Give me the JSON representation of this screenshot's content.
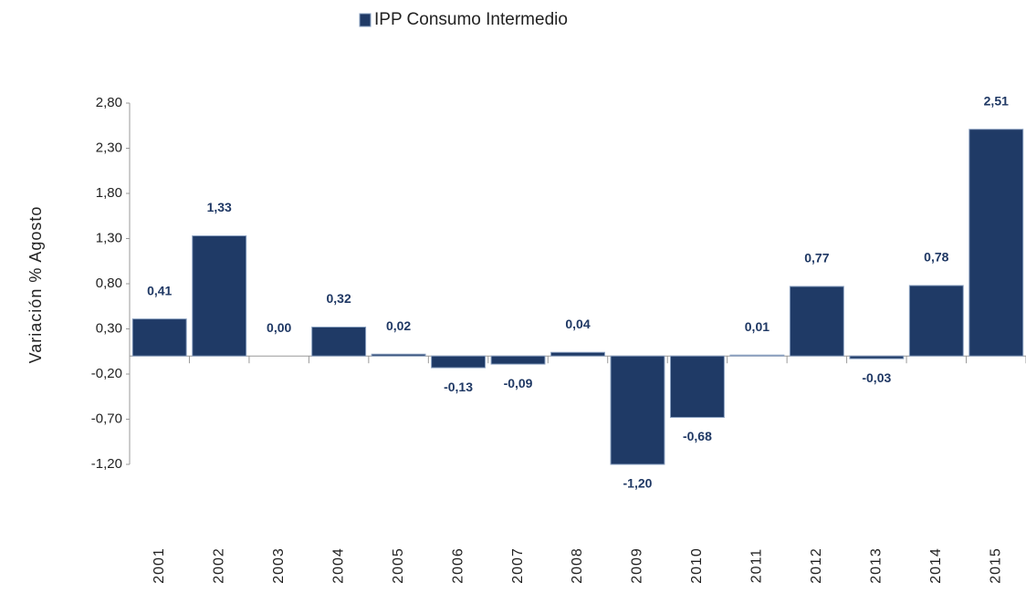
{
  "chart_data": {
    "type": "bar",
    "legend": "IPP Consumo Intermedio",
    "y_label": "Variación %  Agosto",
    "color": "#1f3a66",
    "categories": [
      "2001",
      "2002",
      "2003",
      "2004",
      "2005",
      "2006",
      "2007",
      "2008",
      "2009",
      "2010",
      "2011",
      "2012",
      "2013",
      "2014",
      "2015"
    ],
    "values": [
      0.41,
      1.33,
      0.0,
      0.32,
      0.02,
      -0.13,
      -0.09,
      0.04,
      -1.2,
      -0.68,
      0.01,
      0.77,
      -0.03,
      0.78,
      2.51
    ],
    "value_labels": [
      "0,41",
      "1,33",
      "0,00",
      "0,32",
      "0,02",
      "-0,13",
      "-0,09",
      "0,04",
      "-1,20",
      "-0,68",
      "0,01",
      "0,77",
      "-0,03",
      "0,78",
      "2,51"
    ],
    "ylim": [
      -1.2,
      2.8
    ],
    "yticks": [
      {
        "value": -1.2,
        "label": "-1,20"
      },
      {
        "value": -0.7,
        "label": "-0,70"
      },
      {
        "value": -0.2,
        "label": "-0,20"
      },
      {
        "value": 0.3,
        "label": "0,30"
      },
      {
        "value": 0.8,
        "label": "0,80"
      },
      {
        "value": 1.3,
        "label": "1,30"
      },
      {
        "value": 1.8,
        "label": "1,80"
      },
      {
        "value": 2.3,
        "label": "2,30"
      },
      {
        "value": 2.8,
        "label": "2,80"
      }
    ]
  }
}
